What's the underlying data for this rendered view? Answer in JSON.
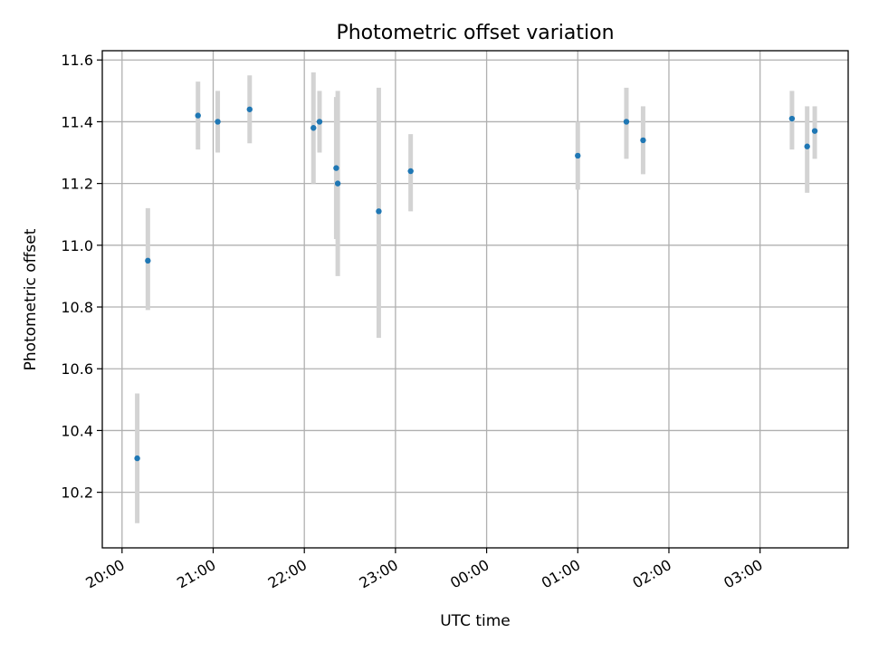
{
  "chart_data": {
    "type": "scatter",
    "title": "Photometric offset variation",
    "xlabel": "UTC time",
    "ylabel": "Photometric offset",
    "grid": true,
    "x_axis": {
      "kind": "time",
      "range": [
        "19:47",
        "03:58"
      ],
      "ticks": [
        "20:00",
        "21:00",
        "22:00",
        "23:00",
        "00:00",
        "01:00",
        "02:00",
        "03:00"
      ]
    },
    "y_axis": {
      "range": [
        10.02,
        11.63
      ],
      "ticks": [
        "10.2",
        "10.4",
        "10.6",
        "10.8",
        "11.0",
        "11.2",
        "11.4",
        "11.6"
      ]
    },
    "colors": {
      "points": "#1f77b4",
      "errorbars": "#d3d3d3"
    },
    "points": [
      {
        "time": "20:10",
        "y": 10.31,
        "ylow": 10.1,
        "yhigh": 10.52
      },
      {
        "time": "20:17",
        "y": 10.95,
        "ylow": 10.79,
        "yhigh": 11.12
      },
      {
        "time": "20:50",
        "y": 11.42,
        "ylow": 11.31,
        "yhigh": 11.53
      },
      {
        "time": "21:03",
        "y": 11.4,
        "ylow": 11.3,
        "yhigh": 11.5
      },
      {
        "time": "21:24",
        "y": 11.44,
        "ylow": 11.33,
        "yhigh": 11.55
      },
      {
        "time": "22:06",
        "y": 11.38,
        "ylow": 11.2,
        "yhigh": 11.56
      },
      {
        "time": "22:10",
        "y": 11.4,
        "ylow": 11.3,
        "yhigh": 11.5
      },
      {
        "time": "22:21",
        "y": 11.25,
        "ylow": 11.02,
        "yhigh": 11.48
      },
      {
        "time": "22:22",
        "y": 11.2,
        "ylow": 10.9,
        "yhigh": 11.5
      },
      {
        "time": "22:49",
        "y": 11.11,
        "ylow": 10.7,
        "yhigh": 11.51
      },
      {
        "time": "23:10",
        "y": 11.24,
        "ylow": 11.11,
        "yhigh": 11.36
      },
      {
        "time": "01:00",
        "y": 11.29,
        "ylow": 11.18,
        "yhigh": 11.4
      },
      {
        "time": "01:32",
        "y": 11.4,
        "ylow": 11.28,
        "yhigh": 11.51
      },
      {
        "time": "01:43",
        "y": 11.34,
        "ylow": 11.23,
        "yhigh": 11.45
      },
      {
        "time": "03:21",
        "y": 11.41,
        "ylow": 11.31,
        "yhigh": 11.5
      },
      {
        "time": "03:31",
        "y": 11.32,
        "ylow": 11.17,
        "yhigh": 11.45
      },
      {
        "time": "03:36",
        "y": 11.37,
        "ylow": 11.28,
        "yhigh": 11.45
      }
    ]
  }
}
